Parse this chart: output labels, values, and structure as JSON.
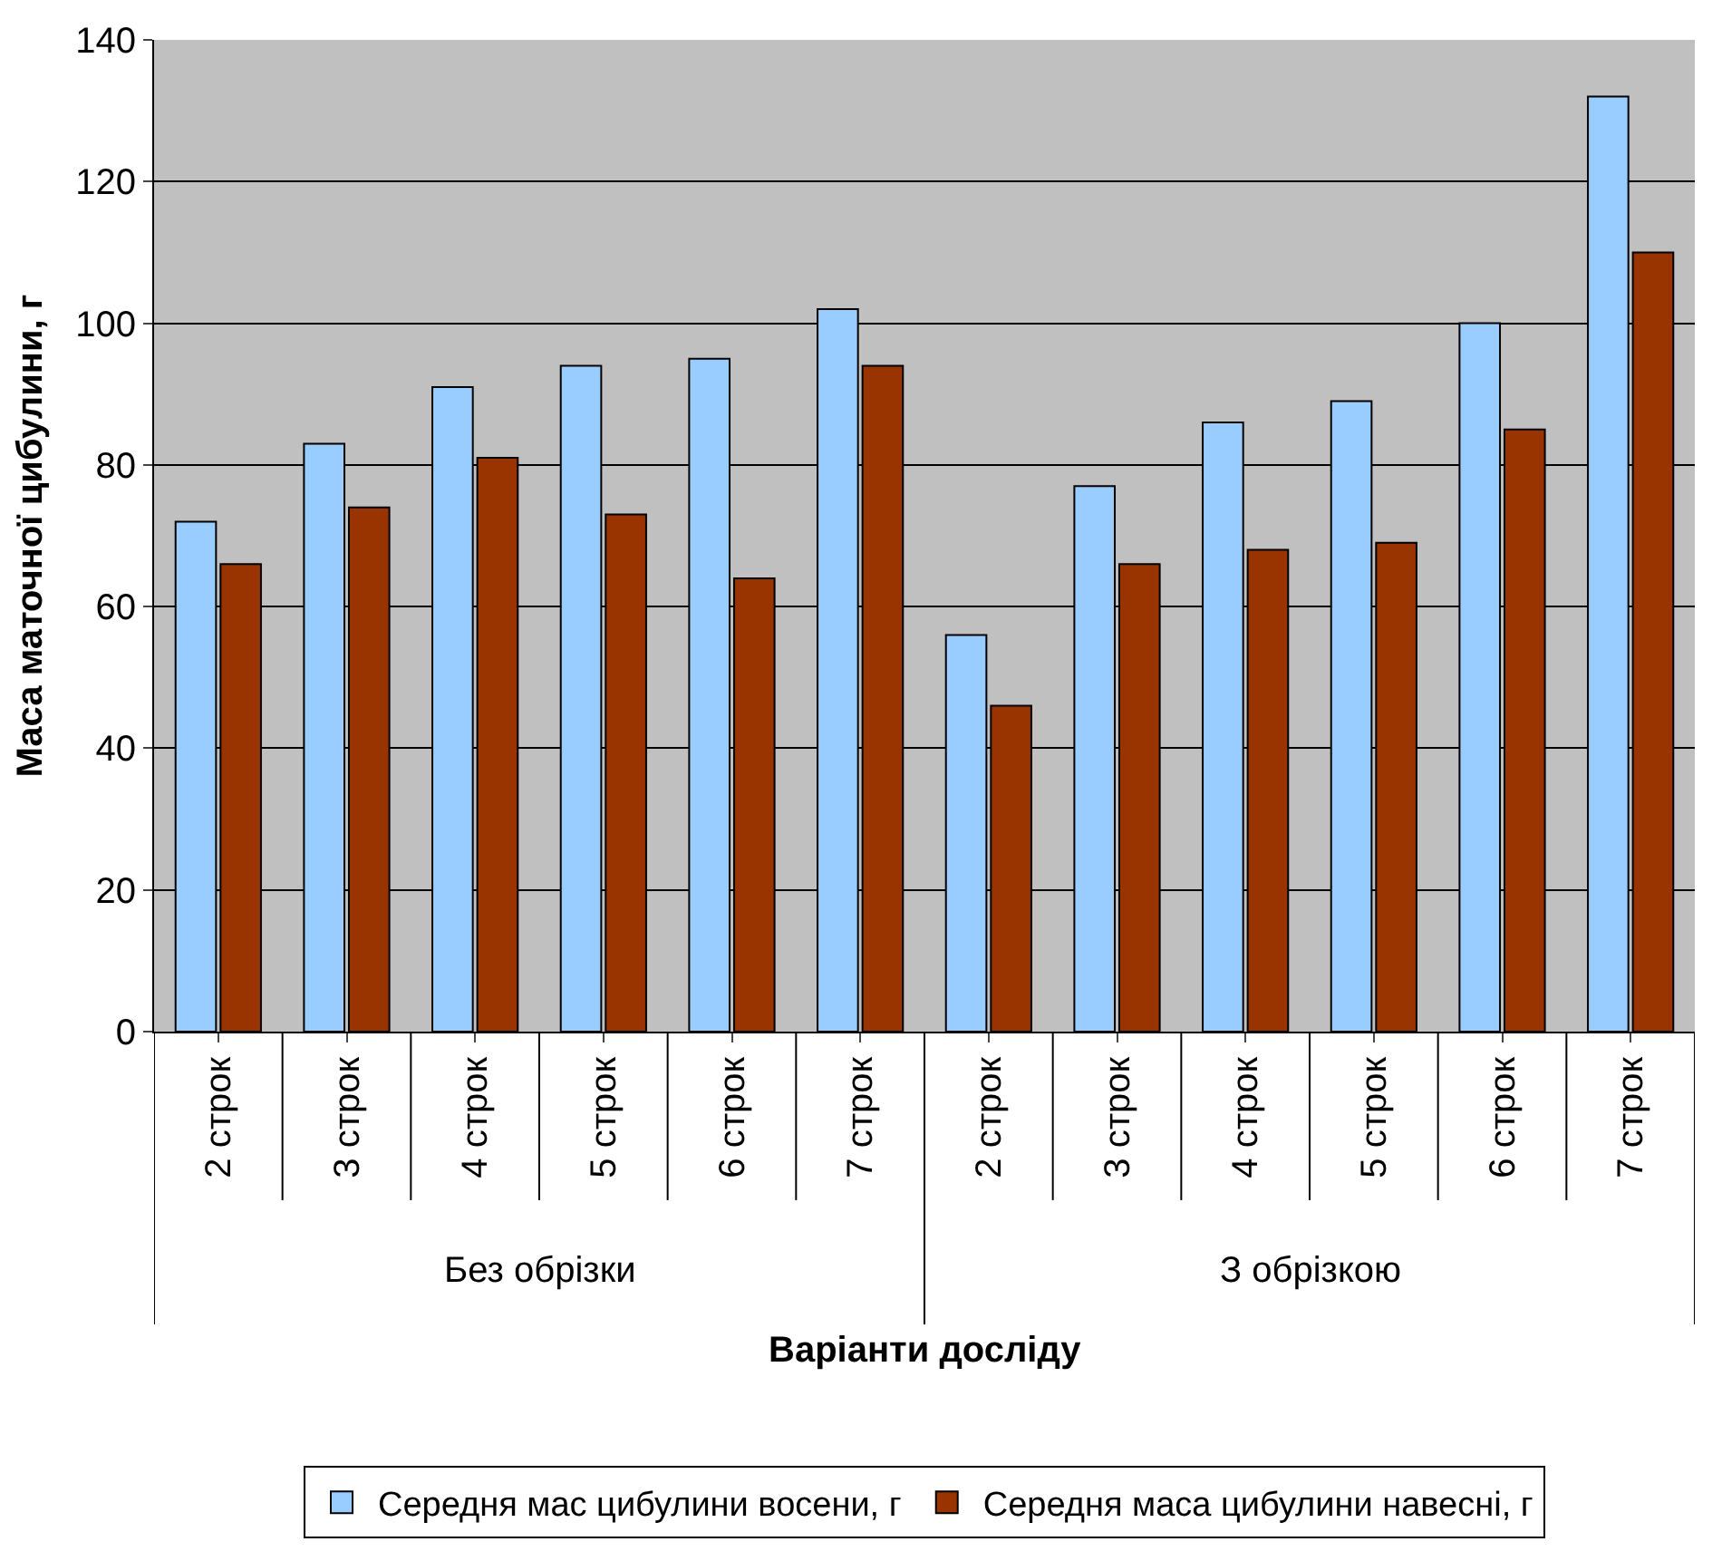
{
  "chart_data": {
    "type": "bar",
    "xlabel": "Варіанти досліду",
    "ylabel": "Маса маточної цибулини, г",
    "categories": [
      "2 строк",
      "3 строк",
      "4 строк",
      "5 строк",
      "6 строк",
      "7 строк",
      "2 строк",
      "3 строк",
      "4 строк",
      "5 строк",
      "6 строк",
      "7 строк"
    ],
    "series": [
      {
        "name": "Середня мас цибулини восени, г",
        "color": "#99ccff",
        "values": [
          72,
          83,
          91,
          94,
          95,
          102,
          56,
          77,
          86,
          89,
          100,
          132
        ]
      },
      {
        "name": "Середня маса цибулини навесні, г",
        "color": "#993300",
        "values": [
          66,
          74,
          81,
          73,
          64,
          94,
          46,
          66,
          68,
          69,
          85,
          110
        ]
      }
    ],
    "annotations": [
      "Без обрізки",
      "З обрізкою"
    ],
    "ylim": [
      0,
      140
    ],
    "yticks": [
      0,
      20,
      40,
      60,
      80,
      100,
      120,
      140
    ],
    "grid": "y",
    "legend": "bottom"
  }
}
